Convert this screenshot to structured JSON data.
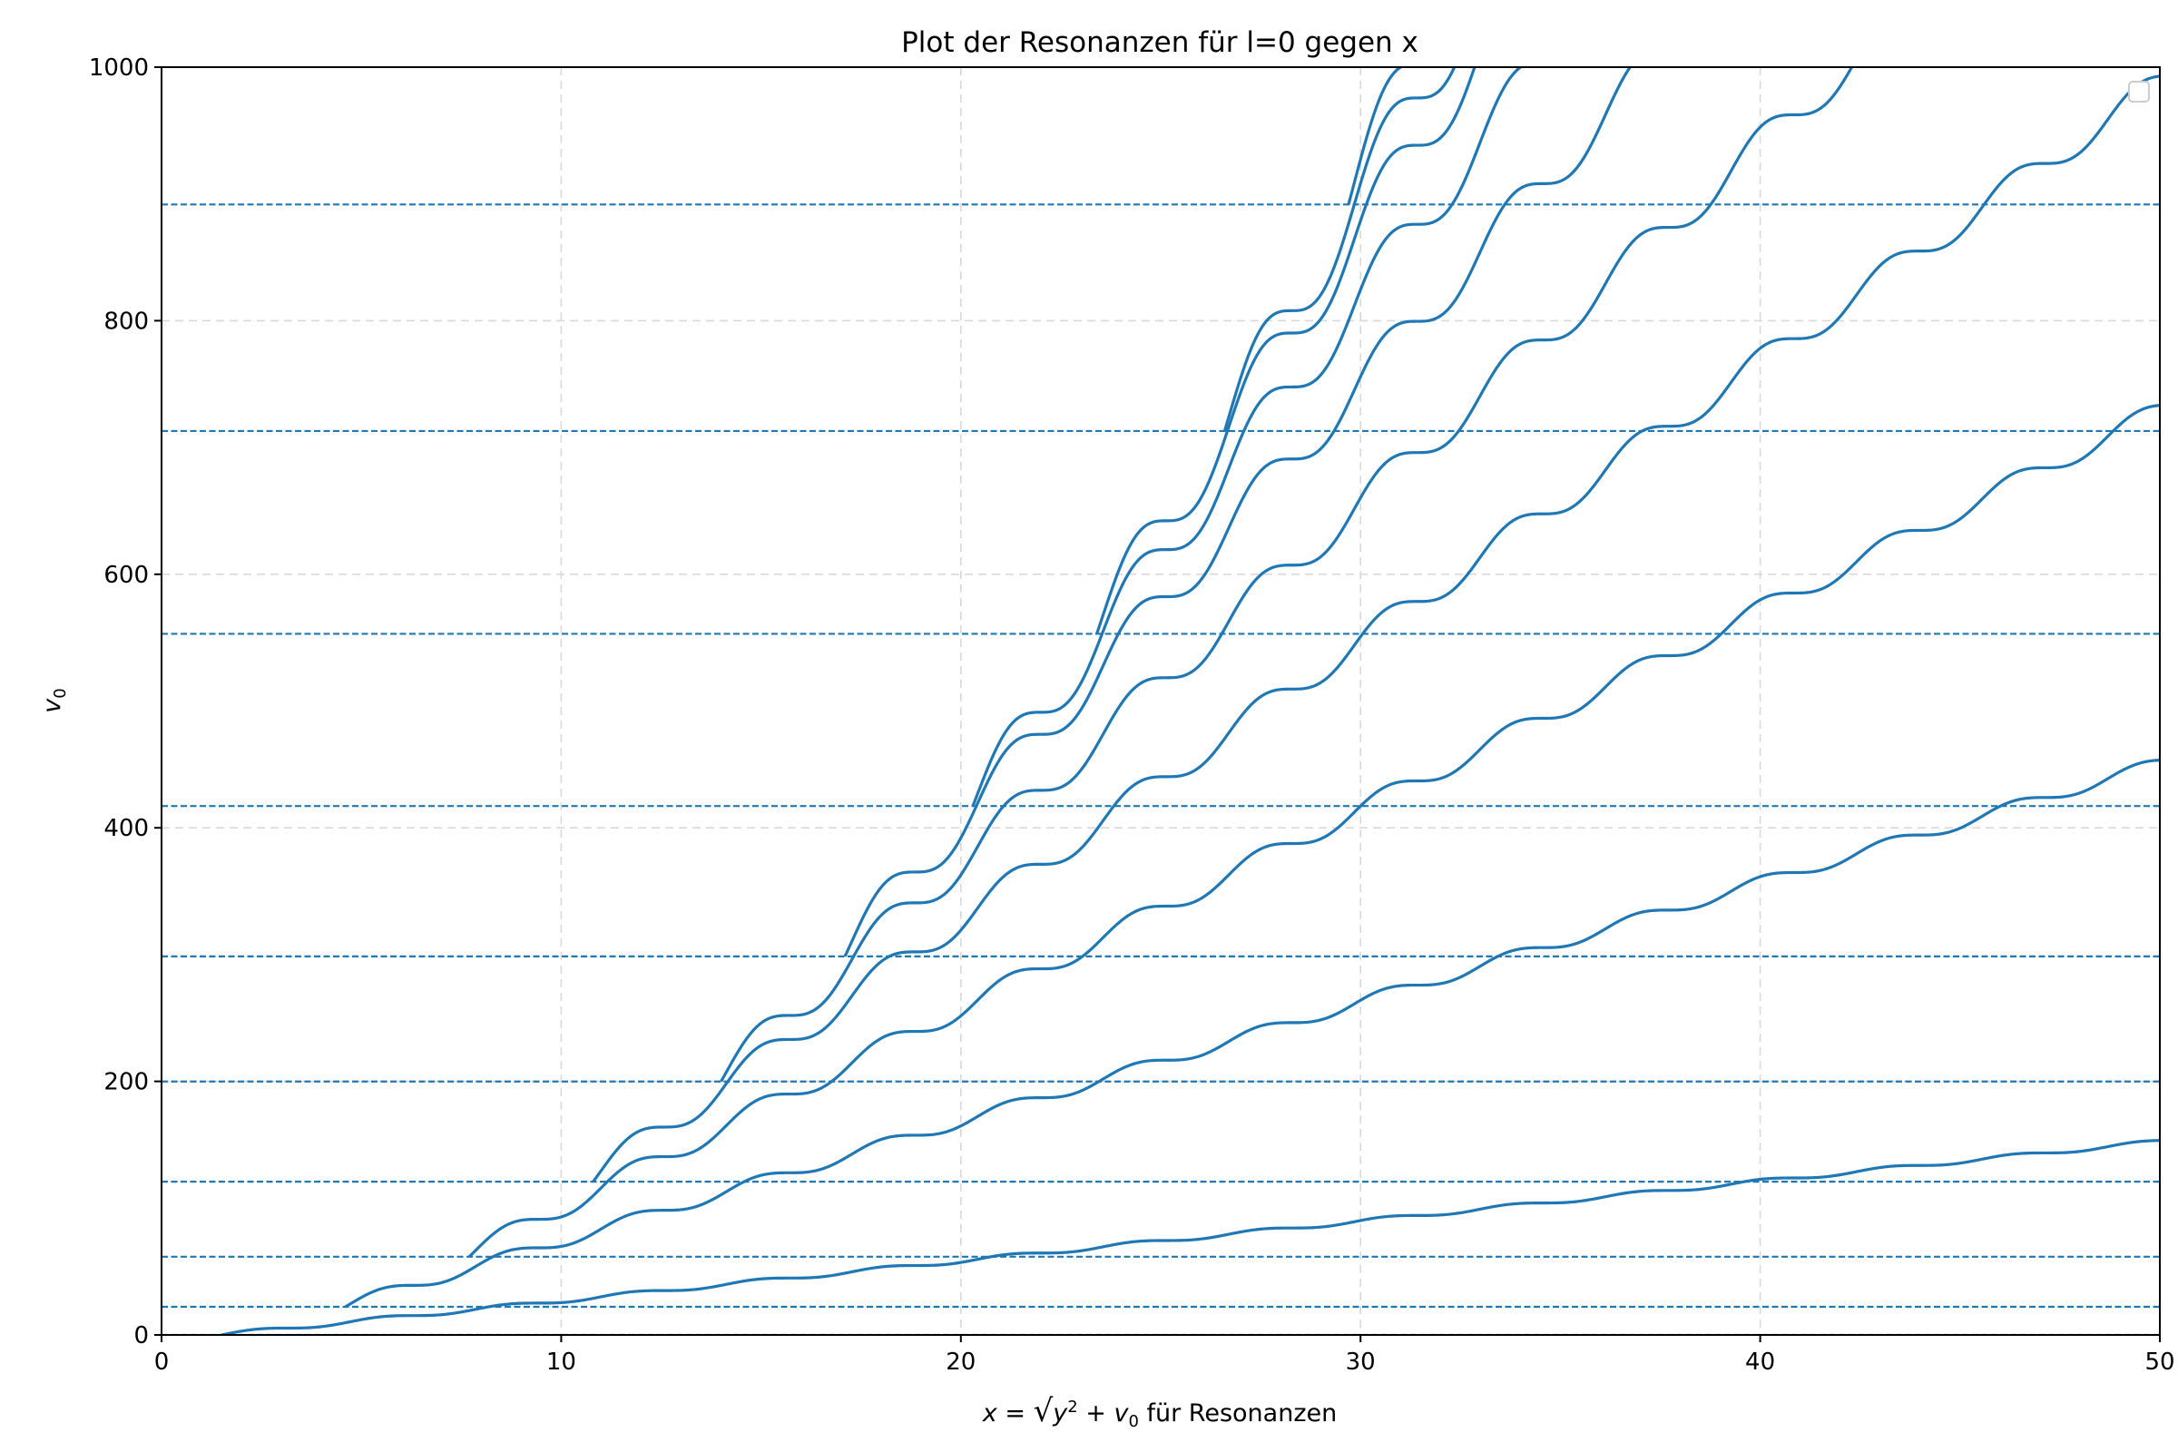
{
  "chart_data": {
    "type": "line",
    "title": "Plot der Resonanzen für l=0 gegen x",
    "xlabel": "für Resonanzen",
    "xlabel_math": "x = √(y² + v₀)",
    "ylabel": "v₀",
    "xlim": [
      0,
      50
    ],
    "ylim": [
      0,
      1000
    ],
    "xticks": [
      0,
      10,
      20,
      30,
      40,
      50
    ],
    "yticks": [
      0,
      200,
      400,
      600,
      800,
      1000
    ],
    "grid": true,
    "legend": "top-right (empty)",
    "line_color": "#1f77b4",
    "grid_color": "#d9d9d9",
    "hlines": [
      0.0,
      22.2,
      61.7,
      120.9,
      199.9,
      298.6,
      417.2,
      553.0,
      713.0,
      891.7
    ],
    "series": [
      {
        "x_start": 1.5,
        "step_y": 9.87,
        "initial_y": 0.0
      },
      {
        "x_start": 4.6,
        "step_y": 29.6,
        "initial_y": 22.2
      },
      {
        "x_start": 7.7,
        "step_y": 49.4,
        "initial_y": 61.7
      },
      {
        "x_start": 10.8,
        "step_y": 69.1,
        "initial_y": 120.9
      },
      {
        "x_start": 14.0,
        "step_y": 88.8,
        "initial_y": 199.9
      },
      {
        "x_start": 17.1,
        "step_y": 108.6,
        "initial_y": 298.6
      },
      {
        "x_start": 20.3,
        "step_y": 128.3,
        "initial_y": 417.2
      },
      {
        "x_start": 23.4,
        "step_y": 148.1,
        "initial_y": 553.0
      },
      {
        "x_start": 26.6,
        "step_y": 167.8,
        "initial_y": 713.0
      },
      {
        "x_start": 29.7,
        "step_y": 187.5,
        "initial_y": 891.7
      }
    ]
  }
}
